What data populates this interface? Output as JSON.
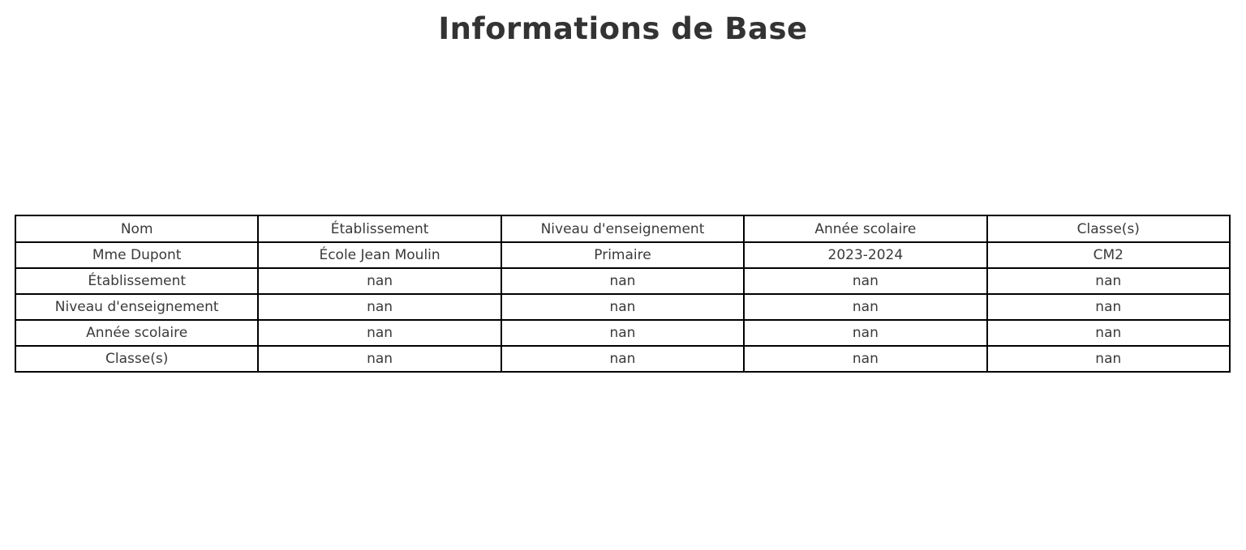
{
  "page": {
    "title": "Informations de Base"
  },
  "chart_data": {
    "type": "table",
    "title": "Informations de Base",
    "columns": [
      "Nom",
      "Établissement",
      "Niveau d'enseignement",
      "Année scolaire",
      "Classe(s)"
    ],
    "rows": [
      [
        "Mme Dupont",
        "École Jean Moulin",
        "Primaire",
        "2023-2024",
        "CM2"
      ],
      [
        "Établissement",
        "nan",
        "nan",
        "nan",
        "nan"
      ],
      [
        "Niveau d'enseignement",
        "nan",
        "nan",
        "nan",
        "nan"
      ],
      [
        "Année scolaire",
        "nan",
        "nan",
        "nan",
        "nan"
      ],
      [
        "Classe(s)",
        "nan",
        "nan",
        "nan",
        "nan"
      ]
    ],
    "layout": {
      "columns_equal_width": true,
      "header_shaded": false,
      "grid_on": true
    }
  },
  "colors": {
    "background": "#ffffff",
    "title_text": "#333333",
    "cell_text": "#3a3a3a",
    "table_border": "#000000"
  }
}
